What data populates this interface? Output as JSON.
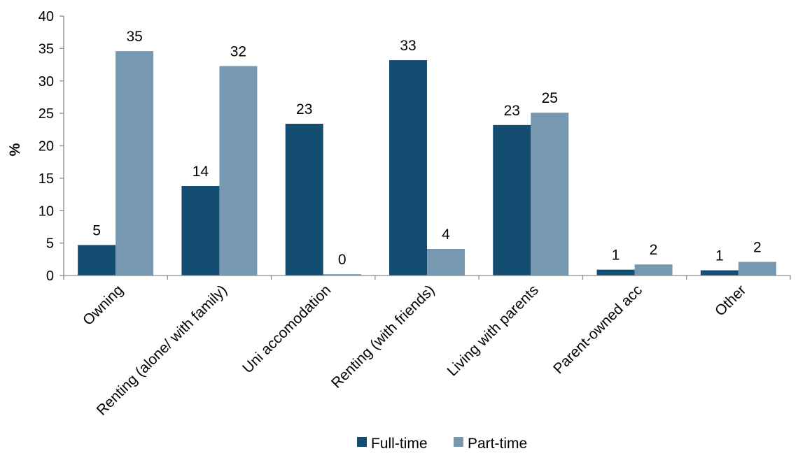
{
  "chart_data": {
    "type": "bar",
    "title": "",
    "xlabel": "",
    "ylabel": "%",
    "ylim": [
      0,
      40
    ],
    "yticks": [
      0,
      5,
      10,
      15,
      20,
      25,
      30,
      35,
      40
    ],
    "grid": false,
    "legend_position": "bottom",
    "categories": [
      "Owning",
      "Renting (alone/ with family)",
      "Uni accomodation",
      "Renting (with friends)",
      "Living with parents",
      "Parent-owned acc",
      "Other"
    ],
    "series": [
      {
        "name": "Full-time",
        "color": "#144d72",
        "values": [
          4.7,
          13.8,
          23.4,
          33.2,
          23.2,
          0.9,
          0.8
        ],
        "labels": [
          "5",
          "14",
          "23",
          "33",
          "23",
          "1",
          "1"
        ]
      },
      {
        "name": "Part-time",
        "color": "#7698b0",
        "values": [
          34.6,
          32.3,
          0.2,
          4.1,
          25.1,
          1.7,
          2.1
        ],
        "labels": [
          "35",
          "32",
          "0",
          "4",
          "25",
          "2",
          "2"
        ]
      }
    ]
  }
}
